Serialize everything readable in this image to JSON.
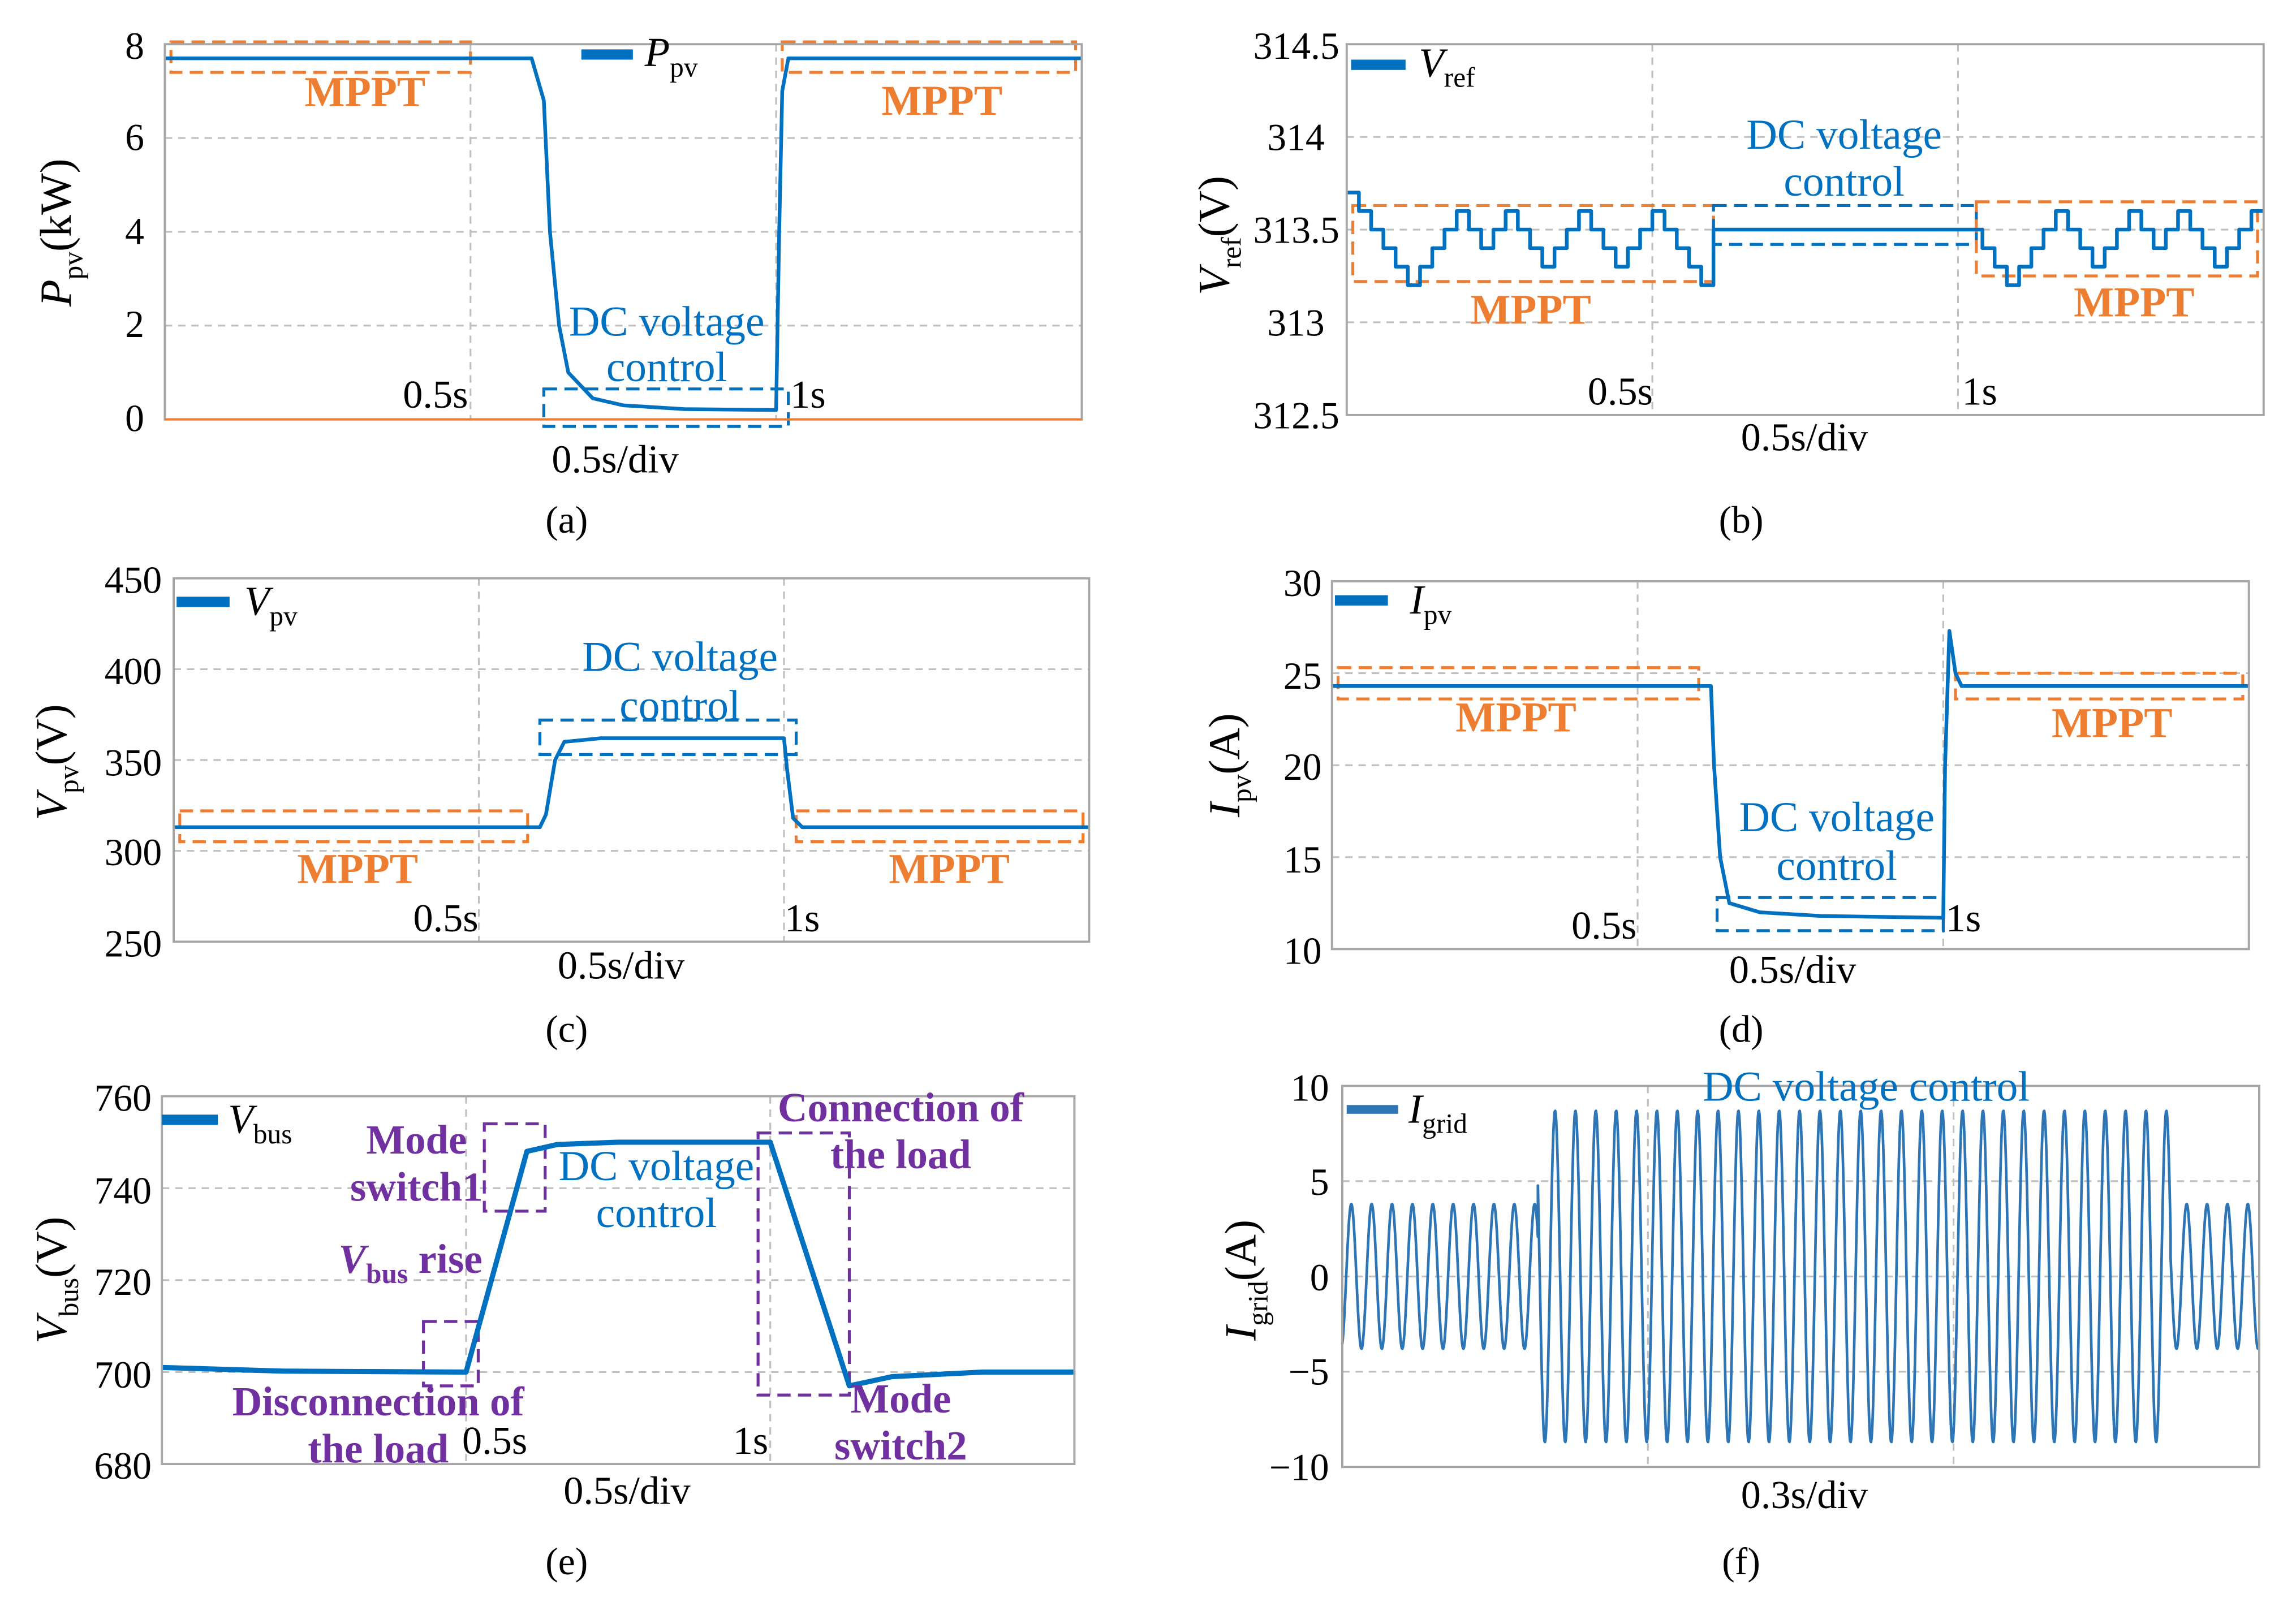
{
  "colors": {
    "line": "#0070C0",
    "mppt": "#ED7D31",
    "dc": "#0070C0",
    "annot": "#7030A0",
    "grid": "#BFBFBF"
  },
  "chart_data": [
    {
      "id": "a",
      "type": "line",
      "title": "(a)",
      "xlabel": "0.5s/div",
      "ylabel": {
        "symbol": "P",
        "sub": "pv",
        "unit": "(kW)"
      },
      "legend": {
        "symbol": "P",
        "sub": "pv"
      },
      "xlim": [
        0,
        1.5
      ],
      "ylim": [
        0,
        8
      ],
      "yticks": [
        0,
        2,
        4,
        6,
        8
      ],
      "xgrid": [
        0.5,
        1.0
      ],
      "ygrid": [
        2,
        4,
        6
      ],
      "time_labels": [
        "0.5s",
        "1s"
      ],
      "mppt_label": "MPPT",
      "dc_label": [
        "DC voltage",
        "control"
      ],
      "series": [
        [
          0,
          7.7
        ],
        [
          0.6,
          7.7
        ],
        [
          0.62,
          6.8
        ],
        [
          0.63,
          4
        ],
        [
          0.645,
          2.0
        ],
        [
          0.66,
          1.0
        ],
        [
          0.7,
          0.45
        ],
        [
          0.75,
          0.3
        ],
        [
          0.85,
          0.22
        ],
        [
          1.0,
          0.2
        ],
        [
          1.005,
          4
        ],
        [
          1.01,
          7.0
        ],
        [
          1.02,
          7.7
        ],
        [
          1.5,
          7.7
        ]
      ],
      "boxes": [
        {
          "kind": "mppt",
          "x": [
            0.01,
            0.5
          ],
          "y": [
            7.4,
            8.05
          ]
        },
        {
          "kind": "dc",
          "x": [
            0.62,
            1.02
          ],
          "y": [
            -0.15,
            0.65
          ]
        },
        {
          "kind": "mppt",
          "x": [
            1.01,
            1.49
          ],
          "y": [
            7.4,
            8.05
          ]
        }
      ]
    },
    {
      "id": "b",
      "type": "line",
      "title": "(b)",
      "xlabel": "0.5s/div",
      "ylabel": {
        "symbol": "V",
        "sub": "ref",
        "unit": "(V)"
      },
      "legend": {
        "symbol": "V",
        "sub": "ref"
      },
      "xlim": [
        0,
        1.5
      ],
      "ylim": [
        312.5,
        314.5
      ],
      "yticks": [
        312.5,
        313,
        313.5,
        314,
        314.5
      ],
      "xgrid": [
        0.5,
        1.0
      ],
      "ygrid": [
        313,
        313.5,
        314
      ],
      "time_labels": [
        "0.5s",
        "1s"
      ],
      "mppt_label": "MPPT",
      "dc_label": [
        "DC voltage",
        "control"
      ],
      "steps": {
        "dt": 0.02,
        "segments": [
          {
            "start": 0,
            "levels": [
              313.7,
              313.6,
              313.5,
              313.4,
              313.3,
              313.2,
              313.3,
              313.4,
              313.5,
              313.6,
              313.5,
              313.4,
              313.5,
              313.6,
              313.5,
              313.4,
              313.3,
              313.4,
              313.5,
              313.6,
              313.5,
              313.4,
              313.3,
              313.4,
              313.5,
              313.6,
              313.5,
              313.4,
              313.3,
              313.2
            ]
          },
          {
            "start": 0.6,
            "levels": [
              313.5,
              313.5,
              313.5,
              313.5,
              313.5,
              313.5,
              313.5,
              313.5,
              313.5,
              313.5,
              313.5,
              313.5,
              313.5,
              313.5,
              313.5,
              313.5,
              313.5,
              313.5,
              313.5,
              313.5,
              313.5,
              313.5
            ]
          },
          {
            "start": 1.04,
            "levels": [
              313.4,
              313.3,
              313.2,
              313.3,
              313.4,
              313.5,
              313.6,
              313.5,
              313.4,
              313.3,
              313.4,
              313.5,
              313.6,
              313.5,
              313.4,
              313.5,
              313.6,
              313.5,
              313.4,
              313.3,
              313.4,
              313.5,
              313.6
            ]
          }
        ]
      },
      "boxes": [
        {
          "kind": "mppt",
          "x": [
            0.01,
            0.6
          ],
          "y": [
            313.22,
            313.63
          ]
        },
        {
          "kind": "dc",
          "x": [
            0.6,
            1.03
          ],
          "y": [
            313.42,
            313.63
          ]
        },
        {
          "kind": "mppt",
          "x": [
            1.03,
            1.49
          ],
          "y": [
            313.25,
            313.65
          ]
        }
      ]
    },
    {
      "id": "c",
      "type": "line",
      "title": "(c)",
      "xlabel": "0.5s/div",
      "ylabel": {
        "symbol": "V",
        "sub": "pv",
        "unit": "(V)"
      },
      "legend": {
        "symbol": "V",
        "sub": "pv"
      },
      "xlim": [
        0,
        1.5
      ],
      "ylim": [
        250,
        450
      ],
      "yticks": [
        250,
        300,
        350,
        400,
        450
      ],
      "xgrid": [
        0.5,
        1.0
      ],
      "ygrid": [
        300,
        350,
        400
      ],
      "time_labels": [
        "0.5s",
        "1s"
      ],
      "mppt_label": "MPPT",
      "dc_label": [
        "DC voltage",
        "control"
      ],
      "series": [
        [
          0,
          313
        ],
        [
          0.6,
          313
        ],
        [
          0.61,
          320
        ],
        [
          0.625,
          350
        ],
        [
          0.64,
          360
        ],
        [
          0.7,
          362
        ],
        [
          1.0,
          362
        ],
        [
          1.005,
          345
        ],
        [
          1.015,
          318
        ],
        [
          1.03,
          313
        ],
        [
          1.5,
          313
        ]
      ],
      "boxes": [
        {
          "kind": "mppt",
          "x": [
            0.01,
            0.58
          ],
          "y": [
            305,
            322
          ]
        },
        {
          "kind": "dc",
          "x": [
            0.6,
            1.02
          ],
          "y": [
            353,
            372
          ]
        },
        {
          "kind": "mppt",
          "x": [
            1.02,
            1.49
          ],
          "y": [
            305,
            322
          ]
        }
      ]
    },
    {
      "id": "d",
      "type": "line",
      "title": "(d)",
      "xlabel": "0.5s/div",
      "ylabel": {
        "symbol": "I",
        "sub": "pv",
        "unit": "(A)"
      },
      "legend": {
        "symbol": "I",
        "sub": "pv"
      },
      "xlim": [
        0,
        1.5
      ],
      "ylim": [
        10,
        30
      ],
      "yticks": [
        10,
        15,
        20,
        25,
        30
      ],
      "xgrid": [
        0.5,
        1.0
      ],
      "ygrid": [
        15,
        20,
        25
      ],
      "time_labels": [
        "0.5s",
        "1s"
      ],
      "mppt_label": "MPPT",
      "dc_label": [
        "DC voltage",
        "control"
      ],
      "series": [
        [
          0,
          24.3
        ],
        [
          0.62,
          24.3
        ],
        [
          0.625,
          20
        ],
        [
          0.635,
          15
        ],
        [
          0.65,
          12.5
        ],
        [
          0.7,
          12
        ],
        [
          0.8,
          11.8
        ],
        [
          1.0,
          11.7
        ],
        [
          1.003,
          20
        ],
        [
          1.01,
          27.3
        ],
        [
          1.02,
          25
        ],
        [
          1.03,
          24.3
        ],
        [
          1.5,
          24.3
        ]
      ],
      "boxes": [
        {
          "kind": "mppt",
          "x": [
            0.01,
            0.6
          ],
          "y": [
            23.6,
            25.3
          ]
        },
        {
          "kind": "dc",
          "x": [
            0.63,
            1.0
          ],
          "y": [
            11,
            12.8
          ]
        },
        {
          "kind": "mppt",
          "x": [
            1.02,
            1.49
          ],
          "y": [
            23.6,
            25
          ]
        }
      ]
    },
    {
      "id": "e",
      "type": "line",
      "title": "(e)",
      "xlabel": "0.5s/div",
      "ylabel": {
        "symbol": "V",
        "sub": "bus",
        "unit": "(V)"
      },
      "legend": {
        "symbol": "V",
        "sub": "bus"
      },
      "xlim": [
        0,
        1.5
      ],
      "ylim": [
        680,
        760
      ],
      "yticks": [
        680,
        700,
        720,
        740,
        760
      ],
      "xgrid": [
        0.5,
        1.0
      ],
      "ygrid": [
        700,
        720,
        740
      ],
      "time_labels": [
        "0.5s",
        "1s"
      ],
      "dc_label": [
        "DC voltage",
        "control"
      ],
      "annotations": {
        "mode1": [
          "Mode",
          "switch1"
        ],
        "rise": {
          "symbol": "V",
          "sub": "bus",
          "text": " rise"
        },
        "disc": [
          "Disconnection of",
          "the load"
        ],
        "conn": [
          "Connection of",
          "the load"
        ],
        "mode2": [
          "Mode",
          "switch2"
        ]
      },
      "series": [
        [
          0,
          701
        ],
        [
          0.2,
          700.2
        ],
        [
          0.5,
          700
        ],
        [
          0.6,
          748
        ],
        [
          0.65,
          749.5
        ],
        [
          0.75,
          750
        ],
        [
          1.0,
          750
        ],
        [
          1.13,
          697
        ],
        [
          1.2,
          699
        ],
        [
          1.35,
          700
        ],
        [
          1.5,
          700
        ]
      ],
      "boxes": [
        {
          "kind": "annot",
          "x": [
            0.53,
            0.63
          ],
          "y": [
            735,
            754
          ]
        },
        {
          "kind": "annot",
          "x": [
            0.43,
            0.52
          ],
          "y": [
            697,
            711
          ]
        },
        {
          "kind": "annot",
          "x": [
            0.98,
            1.13
          ],
          "y": [
            695,
            752
          ]
        }
      ]
    },
    {
      "id": "f",
      "type": "line",
      "title": "(f)",
      "xlabel": "0.3s/div",
      "ylabel": {
        "symbol": "I",
        "sub": "grid",
        "unit": "(A)"
      },
      "legend": {
        "symbol": "I",
        "sub": "grid"
      },
      "xlim": [
        0,
        0.9
      ],
      "ylim": [
        -10,
        10
      ],
      "yticks": [
        -10,
        -5,
        0,
        5,
        10
      ],
      "ytick_labels": [
        "−10",
        "−5",
        "0",
        "5",
        "10"
      ],
      "xgrid": [
        0.3,
        0.6
      ],
      "ygrid": [
        -5,
        0,
        5
      ],
      "dc_label": [
        "DC voltage control"
      ],
      "sine": {
        "freq_hz": 50,
        "segments": [
          {
            "t": [
              0,
              0.192
            ],
            "amp": 3.8
          },
          {
            "t": [
              0.192,
              0.813
            ],
            "amp": 8.7
          },
          {
            "t": [
              0.813,
              0.9
            ],
            "amp": 3.8
          }
        ]
      },
      "boxes": []
    }
  ]
}
